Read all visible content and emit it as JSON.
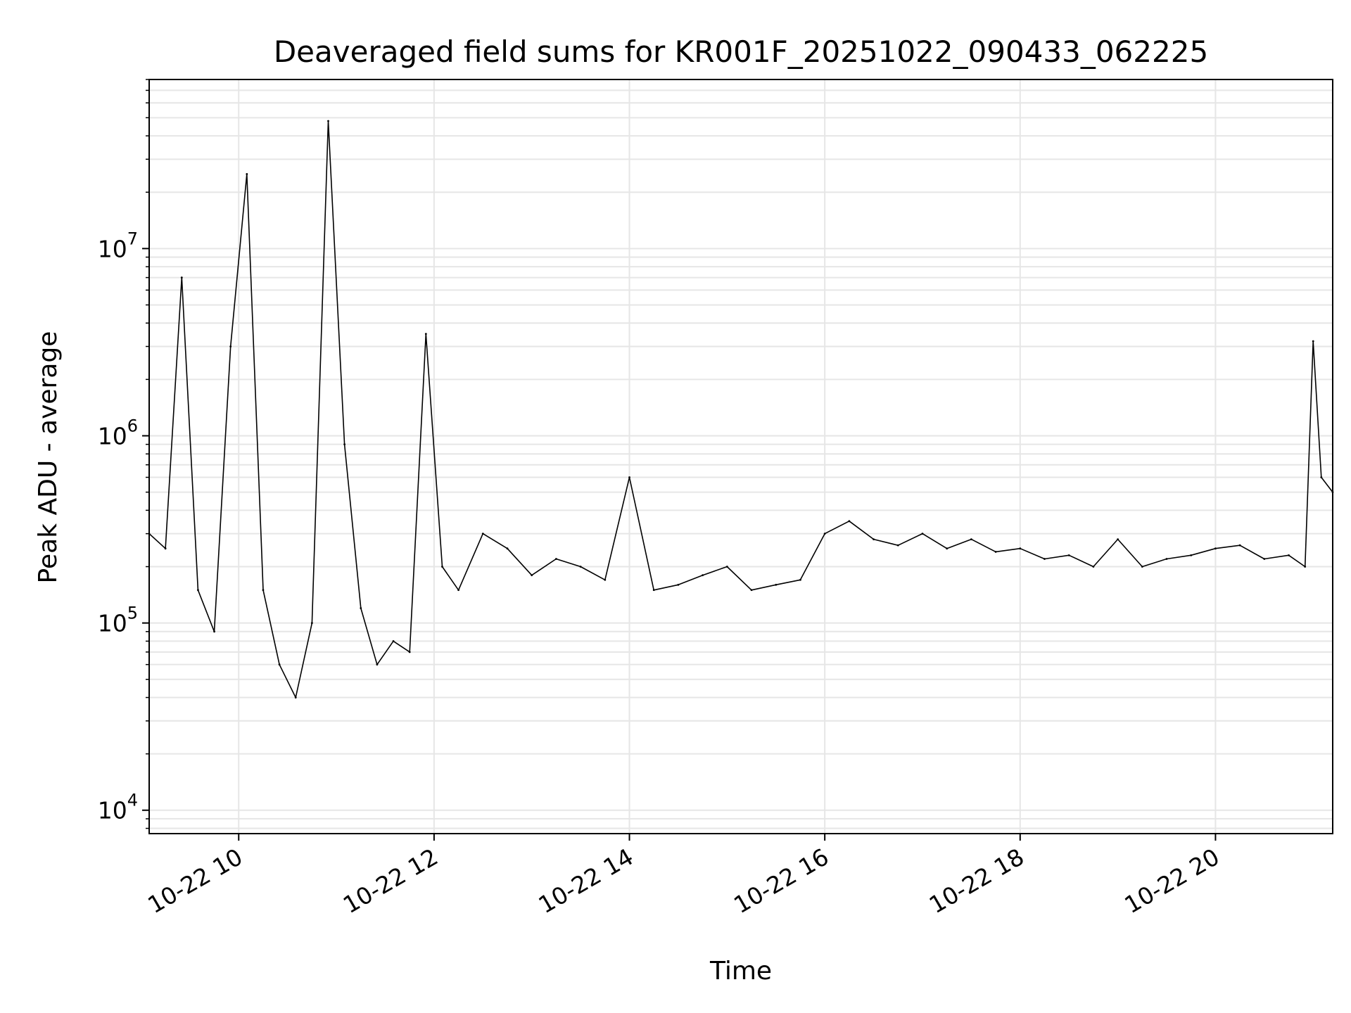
{
  "chart_data": {
    "type": "line",
    "title": "Deaveraged field sums for KR001F_20251022_090433_062225",
    "xlabel": "Time",
    "ylabel": "Peak ADU - average",
    "yscale": "log",
    "grid": true,
    "line_color": "#000000",
    "grid_color": "#e6e6e6",
    "x_ticks": [
      "10-22 10",
      "10-22 12",
      "10-22 14",
      "10-22 16",
      "10-22 18",
      "10-22 20"
    ],
    "y_ticks": [
      {
        "base": "10",
        "exp": "4",
        "value": 10000
      },
      {
        "base": "10",
        "exp": "5",
        "value": 100000
      },
      {
        "base": "10",
        "exp": "6",
        "value": 1000000
      },
      {
        "base": "10",
        "exp": "7",
        "value": 10000000
      }
    ],
    "xlim": [
      "10-22 09:05",
      "10-22 21:12"
    ],
    "ylim": [
      7500,
      80000000
    ],
    "series": [
      {
        "x": [
          "10-22 09:05",
          "10-22 09:15",
          "10-22 09:25",
          "10-22 09:35",
          "10-22 09:45",
          "10-22 09:55",
          "10-22 10:05",
          "10-22 10:15",
          "10-22 10:25",
          "10-22 10:35",
          "10-22 10:45",
          "10-22 10:55",
          "10-22 11:05",
          "10-22 11:15",
          "10-22 11:25",
          "10-22 11:35",
          "10-22 11:45",
          "10-22 11:55",
          "10-22 12:05",
          "10-22 12:15",
          "10-22 12:30",
          "10-22 12:45",
          "10-22 13:00",
          "10-22 13:15",
          "10-22 13:30",
          "10-22 13:45",
          "10-22 14:00",
          "10-22 14:15",
          "10-22 14:30",
          "10-22 14:45",
          "10-22 15:00",
          "10-22 15:15",
          "10-22 15:30",
          "10-22 15:45",
          "10-22 16:00",
          "10-22 16:15",
          "10-22 16:30",
          "10-22 16:45",
          "10-22 17:00",
          "10-22 17:15",
          "10-22 17:30",
          "10-22 17:45",
          "10-22 18:00",
          "10-22 18:15",
          "10-22 18:30",
          "10-22 18:45",
          "10-22 19:00",
          "10-22 19:15",
          "10-22 19:30",
          "10-22 19:45",
          "10-22 20:00",
          "10-22 20:15",
          "10-22 20:30",
          "10-22 20:45",
          "10-22 20:55",
          "10-22 21:00",
          "10-22 21:05",
          "10-22 21:12"
        ],
        "y": [
          300000,
          250000,
          7000000,
          150000,
          90000,
          3000000,
          25000000,
          150000,
          60000,
          40000,
          100000,
          48000000,
          900000,
          120000,
          60000,
          80000,
          70000,
          3500000,
          200000,
          150000,
          300000,
          250000,
          180000,
          220000,
          200000,
          170000,
          600000,
          150000,
          160000,
          180000,
          200000,
          150000,
          160000,
          170000,
          300000,
          350000,
          280000,
          260000,
          300000,
          250000,
          280000,
          240000,
          250000,
          220000,
          230000,
          200000,
          280000,
          200000,
          220000,
          230000,
          250000,
          260000,
          220000,
          230000,
          200000,
          3200000,
          600000,
          500000
        ]
      }
    ]
  }
}
